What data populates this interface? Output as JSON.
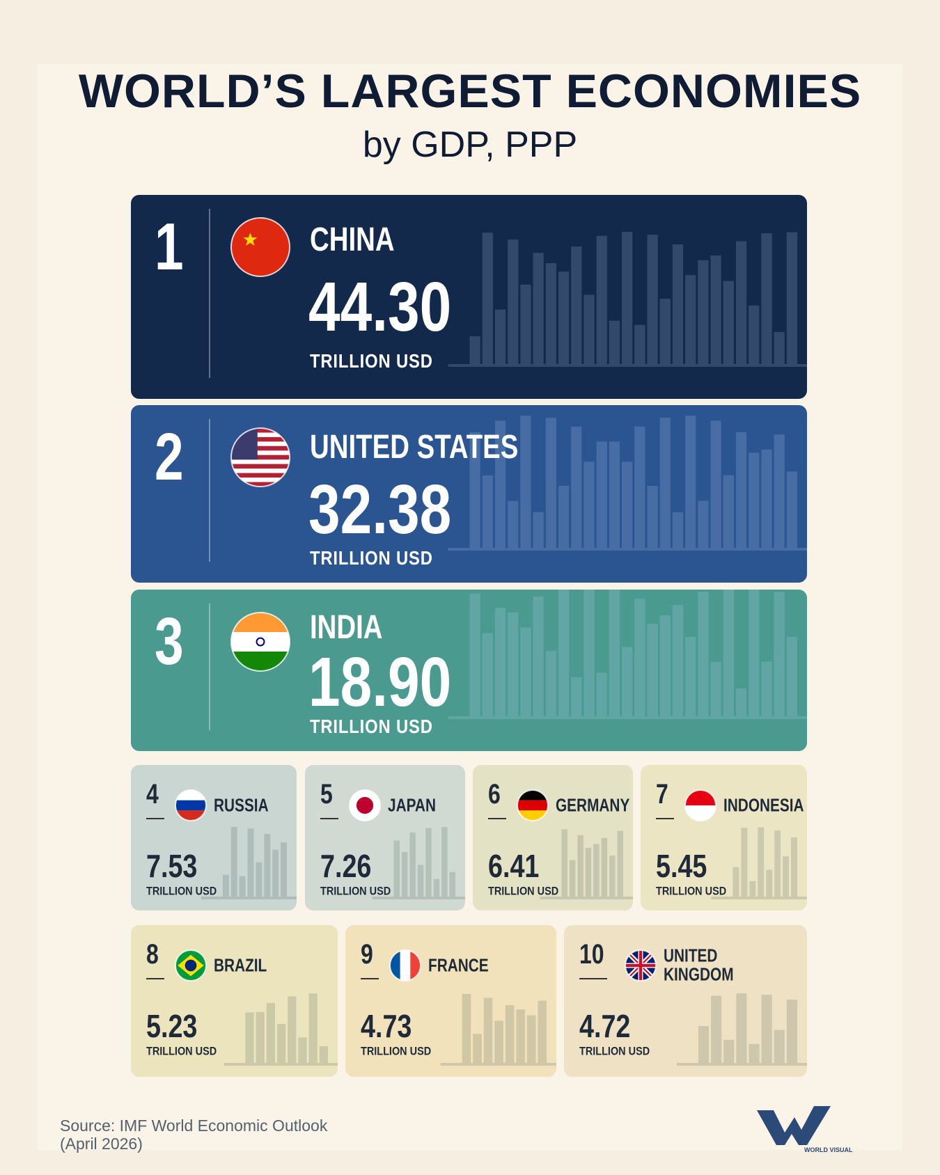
{
  "header": {
    "title": "WORLD’S LARGEST ECONOMIES",
    "subtitle": "by GDP, PPP"
  },
  "unit": "TRILLION USD",
  "countries": [
    {
      "rank": 1,
      "name": "CHINA",
      "value": "44.30"
    },
    {
      "rank": 2,
      "name": "UNITED STATES",
      "value": "32.38"
    },
    {
      "rank": 3,
      "name": "INDIA",
      "value": "18.90"
    },
    {
      "rank": 4,
      "name": "RUSSIA",
      "value": "7.53"
    },
    {
      "rank": 5,
      "name": "JAPAN",
      "value": "7.26"
    },
    {
      "rank": 6,
      "name": "GERMANY",
      "value": "6.41"
    },
    {
      "rank": 7,
      "name": "INDONESIA",
      "value": "5.45"
    },
    {
      "rank": 8,
      "name": "BRAZIL",
      "value": "5.23"
    },
    {
      "rank": 9,
      "name": "FRANCE",
      "value": "4.73"
    },
    {
      "rank": 10,
      "name": "UNITED KINGDOM",
      "value": "4.72"
    }
  ],
  "footer": {
    "source": "Source: IMF World Economic Outlook",
    "source_date": "(April 2026)",
    "logo": "WORLD VISUALIZED"
  }
}
